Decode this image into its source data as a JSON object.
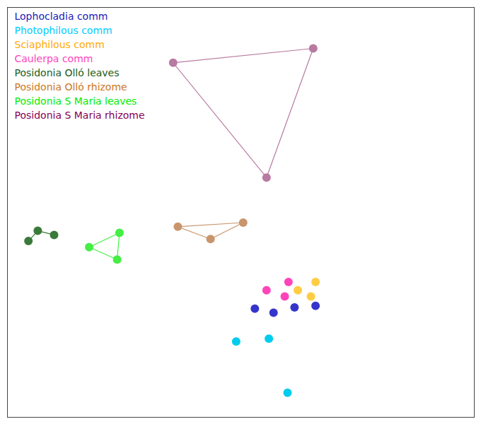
{
  "chart_data": {
    "type": "scatter",
    "xlim": [
      0,
      1
    ],
    "ylim": [
      0,
      1
    ],
    "xticks": [],
    "yticks": [],
    "tick_labels": false,
    "grid": false,
    "series": [
      {
        "name": "Posidonia S Maria rhizome",
        "type": "polygon",
        "color": "#b87aa0",
        "x": [
          0.355,
          0.655,
          0.555
        ],
        "y": [
          0.865,
          0.9,
          0.585
        ]
      },
      {
        "name": "Posidonia Olló rhizome",
        "type": "polygon",
        "color": "#c8956c",
        "x": [
          0.365,
          0.435,
          0.505
        ],
        "y": [
          0.465,
          0.435,
          0.475
        ]
      },
      {
        "name": "Posidonia S Maria leaves",
        "type": "polygon",
        "color": "#44ee44",
        "x": [
          0.175,
          0.24,
          0.235
        ],
        "y": [
          0.415,
          0.45,
          0.385
        ]
      },
      {
        "name": "Posidonia Olló leaves",
        "type": "line",
        "color": "#3a7a3a",
        "x": [
          0.045,
          0.065,
          0.1
        ],
        "y": [
          0.43,
          0.455,
          0.445
        ]
      },
      {
        "name": "Lophocladia comm",
        "type": "scatter",
        "color": "#3535cc",
        "x": [
          0.53,
          0.57,
          0.615,
          0.66
        ],
        "y": [
          0.265,
          0.255,
          0.268,
          0.272
        ]
      },
      {
        "name": "Photophilous comm",
        "type": "scatter",
        "color": "#00ccee",
        "x": [
          0.49,
          0.56,
          0.6
        ],
        "y": [
          0.185,
          0.192,
          0.06
        ]
      },
      {
        "name": "Caulerpa comm",
        "type": "scatter",
        "color": "#ff44bb",
        "x": [
          0.555,
          0.594,
          0.602
        ],
        "y": [
          0.31,
          0.295,
          0.33
        ]
      },
      {
        "name": "Sciaphilous comm",
        "type": "scatter",
        "color": "#ffcc44",
        "x": [
          0.622,
          0.65,
          0.66
        ],
        "y": [
          0.31,
          0.295,
          0.33
        ]
      }
    ],
    "annotations": [
      {
        "text": "Lophocladia comm",
        "color": "#2020bb"
      },
      {
        "text": "Photophilous comm",
        "color": "#00ccff"
      },
      {
        "text": "Sciaphilous comm",
        "color": "#ffaa00"
      },
      {
        "text": "Caulerpa comm",
        "color": "#ff44bb"
      },
      {
        "text": "Posidonia Olló leaves",
        "color": "#1a5c1a"
      },
      {
        "text": "Posidonia Olló rhizome",
        "color": "#cc7722"
      },
      {
        "text": "Posidonia S Maria leaves",
        "color": "#00ee00"
      },
      {
        "text": "Posidonia S Maria rhizome",
        "color": "#880055"
      }
    ]
  }
}
